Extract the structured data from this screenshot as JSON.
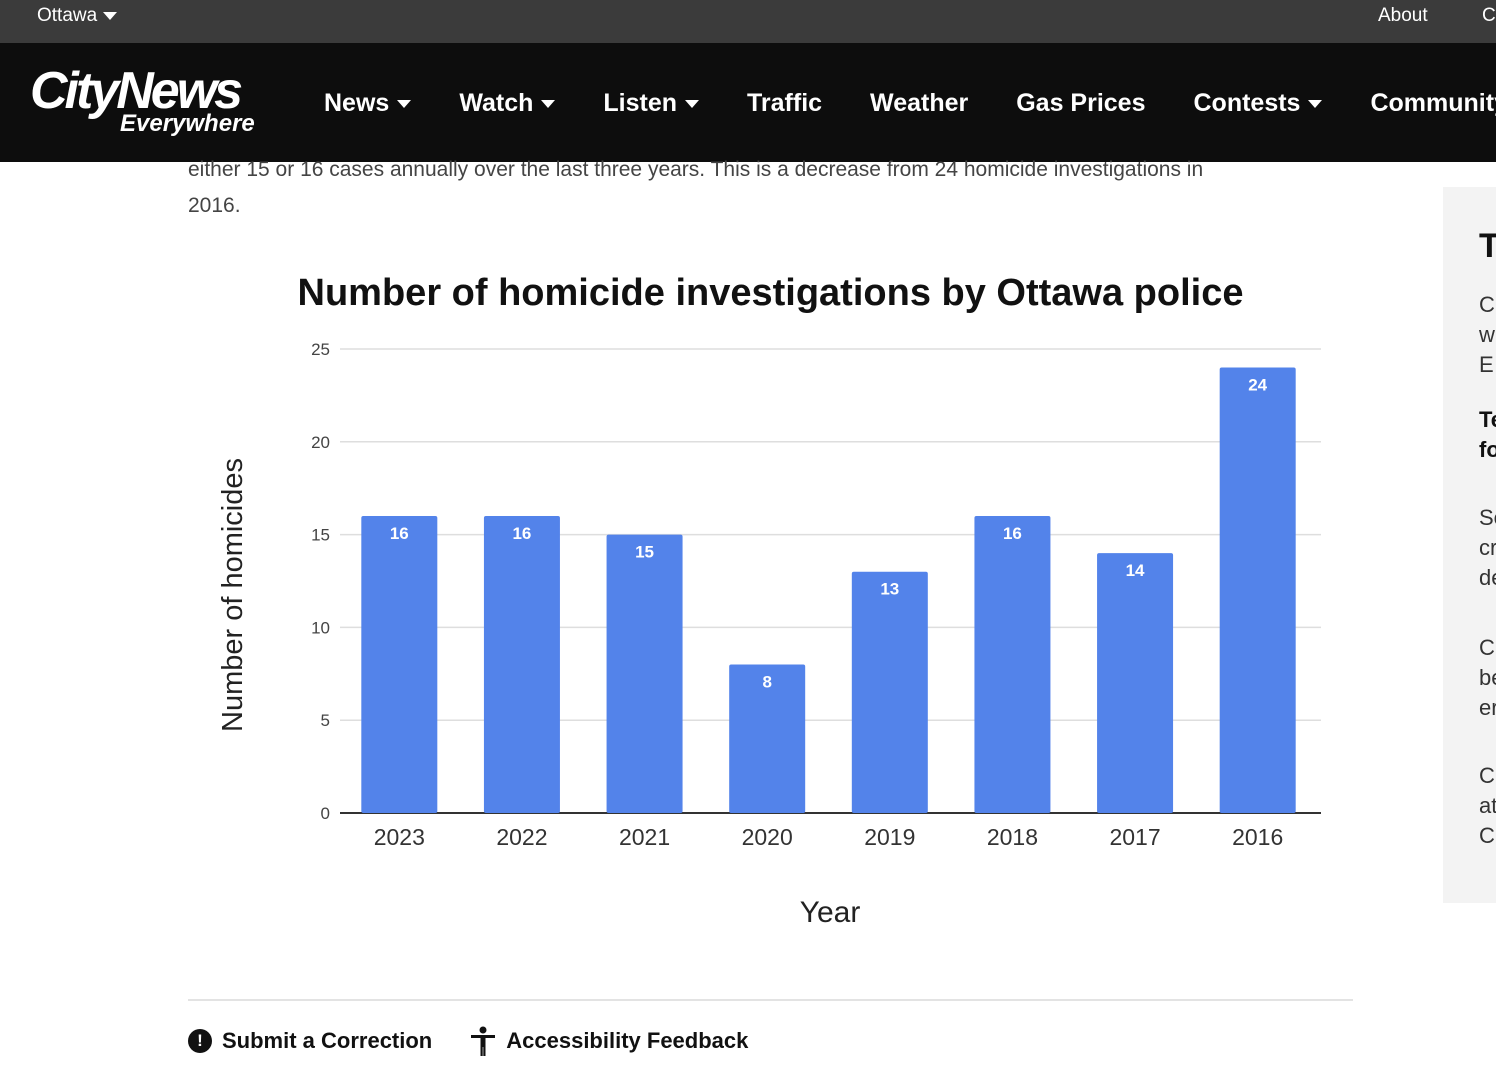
{
  "topbar": {
    "city": "Ottawa",
    "about": "About",
    "contact": "C"
  },
  "navbar": {
    "logo_line1": "CityNews",
    "logo_line2": "Everywhere",
    "items": [
      {
        "label": "News",
        "dropdown": true
      },
      {
        "label": "Watch",
        "dropdown": true
      },
      {
        "label": "Listen",
        "dropdown": true
      },
      {
        "label": "Traffic",
        "dropdown": false
      },
      {
        "label": "Weather",
        "dropdown": false
      },
      {
        "label": "Gas Prices",
        "dropdown": false
      },
      {
        "label": "Contests",
        "dropdown": true
      },
      {
        "label": "Community",
        "dropdown": false
      }
    ]
  },
  "article": {
    "text_line1": "either 15 or 16 cases annually over the last three years. This is a decrease from 24 homicide investigations in",
    "text_line2": "2016."
  },
  "chart_data": {
    "type": "bar",
    "title": "Number of homicide investigations by Ottawa police",
    "xlabel": "Year",
    "ylabel": "Number of homicides",
    "categories": [
      "2023",
      "2022",
      "2021",
      "2020",
      "2019",
      "2018",
      "2017",
      "2016"
    ],
    "values": [
      16,
      16,
      15,
      8,
      13,
      16,
      14,
      24
    ],
    "ylim": [
      0,
      25
    ],
    "yticks": [
      0,
      5,
      10,
      15,
      20,
      25
    ],
    "grid": true,
    "bar_color": "#5383ea",
    "data_labels": true
  },
  "footer": {
    "correction_label": "Submit a Correction",
    "accessibility_label": "Accessibility Feedback"
  },
  "sidebar": {
    "heading": "T",
    "lines": [
      "C",
      "w",
      "E",
      "Te",
      "fo",
      "Se",
      "cr",
      "de",
      "C",
      "be",
      "er",
      "C",
      "at",
      "C"
    ]
  }
}
